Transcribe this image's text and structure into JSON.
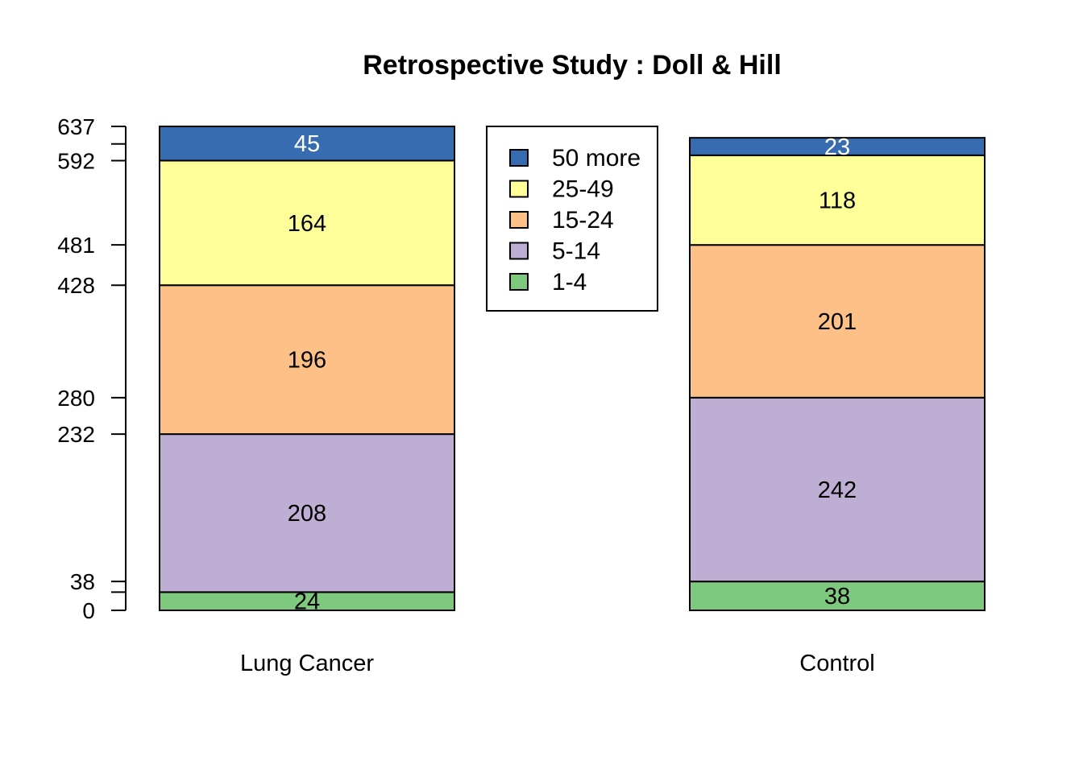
{
  "chart_data": {
    "type": "bar",
    "stacked": true,
    "title": "Retrospective Study : Doll & Hill",
    "xlabel": "",
    "ylabel": "",
    "categories": [
      "Lung Cancer",
      "Control"
    ],
    "series": [
      {
        "name": "1-4",
        "values": [
          24,
          38
        ],
        "color": "#7FC97F",
        "label_color": "#000000"
      },
      {
        "name": "5-14",
        "values": [
          208,
          242
        ],
        "color": "#BEAED4",
        "label_color": "#000000"
      },
      {
        "name": "15-24",
        "values": [
          196,
          201
        ],
        "color": "#FDC086",
        "label_color": "#000000"
      },
      {
        "name": "25-49",
        "values": [
          164,
          118
        ],
        "color": "#FFFF99",
        "label_color": "#000000"
      },
      {
        "name": "50 more",
        "values": [
          45,
          23
        ],
        "color": "#386CB0",
        "label_color": "#FFFFFF"
      }
    ],
    "ylim": [
      0,
      637
    ],
    "yticks": [
      0,
      24,
      38,
      232,
      280,
      428,
      481,
      592,
      614,
      637
    ],
    "ytick_labels": [
      "0",
      "",
      "38",
      "232",
      "280",
      "428",
      "481",
      "592",
      "",
      "637"
    ],
    "legend": {
      "position": "top-center",
      "order": [
        "50 more",
        "25-49",
        "15-24",
        "5-14",
        "1-4"
      ]
    },
    "grid": false
  }
}
